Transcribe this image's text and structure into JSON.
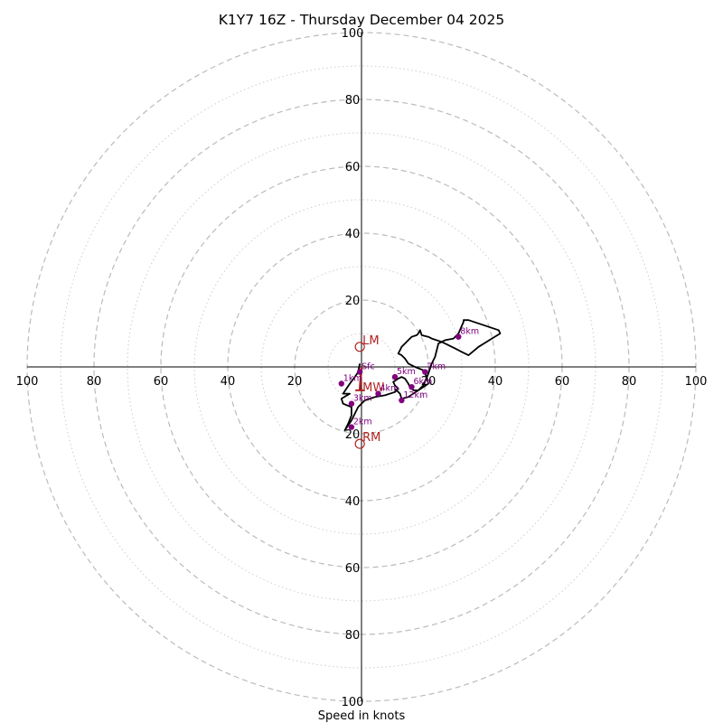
{
  "chart_data": {
    "type": "hodograph",
    "title": "K1Y7 16Z - Thursday December 04 2025",
    "xlabel": "Speed in knots",
    "max_speed": 100,
    "ring_major": [
      20,
      40,
      60,
      80,
      100
    ],
    "ring_minor": [
      10,
      30,
      50,
      70,
      90
    ],
    "tick_labels_x": [
      "100",
      "80",
      "60",
      "40",
      "20",
      "20",
      "40",
      "60",
      "80",
      "100"
    ],
    "tick_values_x": [
      -100,
      -80,
      -60,
      -40,
      -20,
      20,
      40,
      60,
      80,
      100
    ],
    "tick_labels_y": [
      "100",
      "80",
      "60",
      "40",
      "20",
      "20",
      "40",
      "60",
      "80",
      "100"
    ],
    "tick_values_y": [
      100,
      80,
      60,
      40,
      20,
      -20,
      -40,
      -60,
      -80,
      -100
    ],
    "trace_u": [
      -0.5,
      -1,
      -2,
      -3.5,
      -5.5,
      -3.5,
      -6,
      -5.5,
      -3,
      -3,
      -4,
      -5,
      -3,
      -1,
      1,
      4,
      7,
      10,
      11,
      10,
      9.5,
      11,
      12,
      13,
      14,
      14.5,
      15,
      15.5,
      16,
      17,
      18.5,
      20,
      21,
      22,
      23,
      25,
      27.5,
      29,
      30.5,
      30.5,
      32,
      41,
      41.5,
      39,
      35,
      32,
      30,
      28,
      26,
      24,
      21,
      20,
      18,
      17.5,
      17,
      16.5,
      15,
      14,
      13,
      12,
      11.5,
      11,
      12,
      13,
      14,
      16,
      18.5,
      19.5,
      20,
      17,
      14,
      12,
      11.5,
      10
    ],
    "trace_v": [
      1,
      -1.5,
      -3,
      -5,
      -8,
      -8,
      -9.5,
      -11,
      -12,
      -14.5,
      -17,
      -19,
      -16,
      -12,
      -10,
      -9,
      -8.5,
      -7.5,
      -6.5,
      -5.5,
      -4.5,
      -3.5,
      -3,
      -3.5,
      -5,
      -6,
      -6.5,
      -7,
      -7,
      -7,
      -5.5,
      -2,
      1,
      3,
      7,
      8,
      8.5,
      10,
      13.5,
      14,
      14,
      11,
      10,
      8.5,
      6,
      3.5,
      4.5,
      5.5,
      6.5,
      7.5,
      8.5,
      9,
      9.5,
      11,
      10,
      9.5,
      9,
      8,
      7,
      6,
      5,
      4,
      3.5,
      2.5,
      1,
      0,
      -1,
      -3,
      -5,
      -7,
      -9,
      -9.5,
      -8,
      -6.5
    ],
    "height_points": [
      {
        "label": "Sfc",
        "u": -0.5,
        "v": -1.5
      },
      {
        "label": "1km",
        "u": -6,
        "v": -5
      },
      {
        "label": "2km",
        "u": -3,
        "v": -18
      },
      {
        "label": "3km",
        "u": -3,
        "v": -11
      },
      {
        "label": "4km",
        "u": 5,
        "v": -8
      },
      {
        "label": "5km",
        "u": 10,
        "v": -3
      },
      {
        "label": "6km",
        "u": 15,
        "v": -6
      },
      {
        "label": "7km",
        "u": 19,
        "v": -1.5
      },
      {
        "label": "8km",
        "u": 29,
        "v": 9
      },
      {
        "label": "12km",
        "u": 12,
        "v": -10
      }
    ],
    "motion_markers": [
      {
        "label": "LM",
        "u": -0.5,
        "v": 6
      },
      {
        "label": "RM",
        "u": -0.5,
        "v": -23
      },
      {
        "label": "MW",
        "u": -0.5,
        "v": -7
      }
    ],
    "colors": {
      "trace": "#000000",
      "height_point": "#800080",
      "motion": "#b22222",
      "ring": "#bbbbbb",
      "axis": "#000000"
    }
  }
}
